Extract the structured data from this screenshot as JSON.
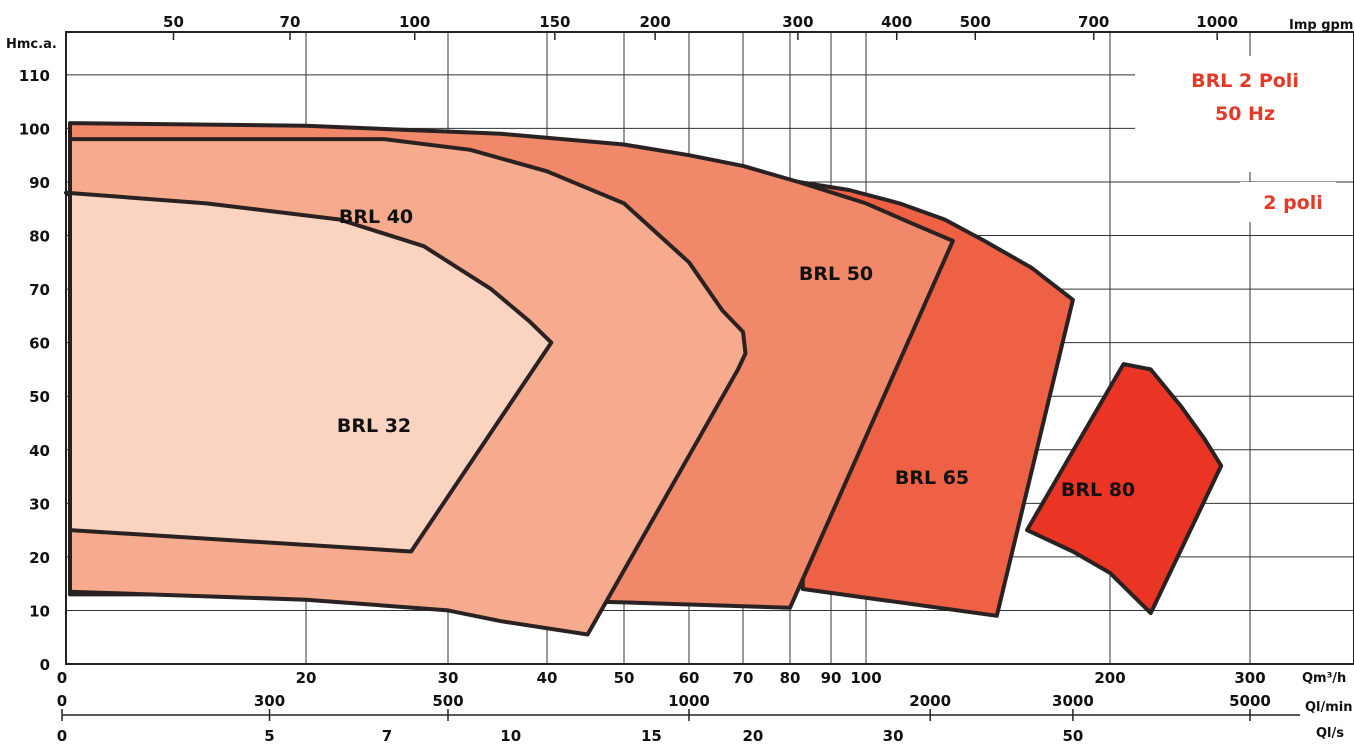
{
  "chart_data": {
    "type": "area",
    "title": "BRL 2 Poli",
    "subtitle": "50 Hz",
    "badge": "2 poli",
    "y_axis": {
      "label": "Hmc.a.",
      "ticks": [
        0,
        10,
        20,
        30,
        40,
        50,
        60,
        70,
        80,
        90,
        100,
        110
      ],
      "range": [
        0,
        118
      ]
    },
    "x_axis_flow_m3h": {
      "label": "Qm³/h",
      "scale": "log",
      "range": [
        0,
        300
      ],
      "ticks": [
        0,
        20,
        30,
        40,
        50,
        60,
        70,
        80,
        90,
        100,
        200,
        300
      ]
    },
    "x_axis_flow_lmin": {
      "label": "Ql/min",
      "ticks": [
        0,
        300,
        500,
        1000,
        2000,
        3000,
        5000
      ]
    },
    "x_axis_flow_ls": {
      "label": "Ql/s",
      "ticks": [
        0,
        5,
        7,
        10,
        15,
        20,
        30,
        50
      ]
    },
    "x_axis_top_imp_gpm": {
      "label": "Imp gpm",
      "ticks": [
        50,
        70,
        100,
        150,
        200,
        300,
        400,
        500,
        700,
        1000
      ]
    },
    "series": [
      {
        "name": "BRL 80",
        "color": "#ea3424",
        "outline": [
          [
            208,
            56
          ],
          [
            276,
            37
          ],
          [
            225,
            9.5
          ],
          [
            158,
            25
          ],
          [
            208,
            56
          ]
        ]
      },
      {
        "name": "BRL 65",
        "color": "#ee6145",
        "outline": [
          [
            82,
            90
          ],
          [
            95,
            87
          ],
          [
            110,
            82
          ],
          [
            130,
            76
          ],
          [
            180,
            68
          ],
          [
            145,
            9
          ],
          [
            83,
            14
          ],
          [
            82,
            90
          ]
        ]
      },
      {
        "name": "BRL 50",
        "color": "#f2886a",
        "outline": [
          [
            0,
            101
          ],
          [
            35,
            99
          ],
          [
            60,
            94
          ],
          [
            82,
            90
          ],
          [
            110,
            84
          ],
          [
            128,
            79
          ],
          [
            80,
            10.5
          ],
          [
            20,
            13
          ],
          [
            0,
            13
          ],
          [
            0,
            101
          ]
        ]
      },
      {
        "name": "BRL 40",
        "color": "#f6aa8e",
        "outline": [
          [
            0,
            98
          ],
          [
            25,
            98
          ],
          [
            45,
            90
          ],
          [
            70,
            62
          ],
          [
            70,
            56
          ],
          [
            45,
            5.5
          ],
          [
            30,
            10
          ],
          [
            0,
            13.5
          ],
          [
            0,
            98
          ]
        ]
      },
      {
        "name": "BRL 32",
        "color": "#fbd3c1",
        "outline": [
          [
            0,
            87.5
          ],
          [
            10,
            88
          ],
          [
            25,
            80
          ],
          [
            40,
            60
          ],
          [
            27,
            21
          ],
          [
            0,
            25
          ],
          [
            0,
            87.5
          ]
        ]
      }
    ]
  }
}
